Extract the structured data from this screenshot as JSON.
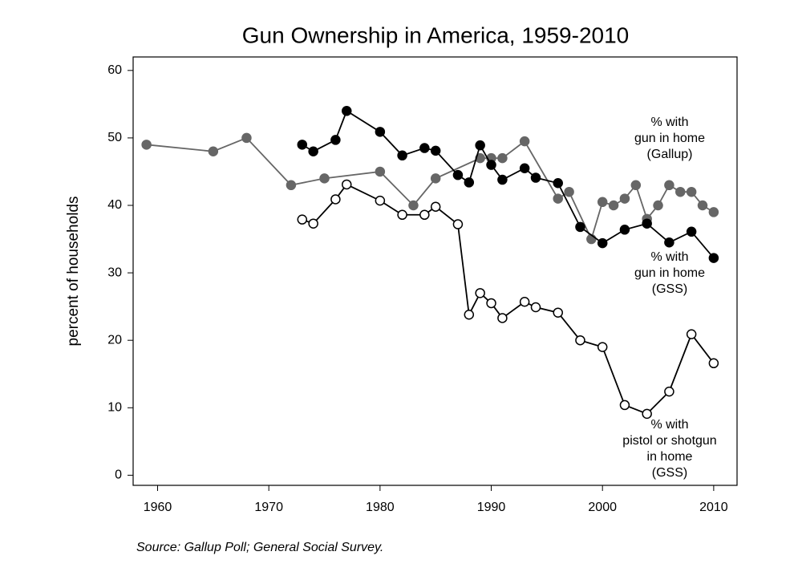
{
  "chart_data": {
    "type": "line",
    "title": "Gun Ownership in America, 1959-2010",
    "y_label": "percent of households",
    "source": "Source: Gallup Poll; General Social Survey.",
    "xlim": [
      1957.8,
      2012.1
    ],
    "xticks": [
      1960,
      1970,
      1980,
      1990,
      2000,
      2010
    ],
    "ylim": [
      -1.5,
      62
    ],
    "yticks": [
      0,
      10,
      20,
      30,
      40,
      50,
      60
    ],
    "grid": false,
    "series": [
      {
        "name": "% with\ngun in home\n(Gallup)",
        "color": "#666666",
        "marker_fill": "#666666",
        "x": [
          1959,
          1965,
          1968,
          1972,
          1975,
          1980,
          1983,
          1985,
          1989,
          1990,
          1991,
          1993,
          1996,
          1997,
          1999,
          2000,
          2001,
          2002,
          2003,
          2004,
          2005,
          2006,
          2007,
          2008,
          2009,
          2010
        ],
        "values": [
          49,
          48,
          50,
          43,
          44,
          45,
          40,
          44,
          47,
          47,
          47,
          49.5,
          41,
          42,
          35,
          40.5,
          40,
          41,
          43,
          38,
          40,
          43,
          42,
          42,
          40,
          39
        ]
      },
      {
        "name": "% with\ngun in home\n(GSS)",
        "color": "#000000",
        "marker_fill": "#000000",
        "x": [
          1973,
          1974,
          1976,
          1977,
          1980,
          1982,
          1984,
          1985,
          1987,
          1988,
          1989,
          1990,
          1991,
          1993,
          1994,
          1996,
          1998,
          2000,
          2002,
          2004,
          2006,
          2008,
          2010
        ],
        "values": [
          49,
          48,
          49.7,
          54,
          50.9,
          47.4,
          48.5,
          48.1,
          44.5,
          43.4,
          48.9,
          46,
          43.8,
          45.5,
          44.1,
          43.3,
          36.8,
          34.4,
          36.4,
          37.3,
          34.5,
          36.1,
          32.2
        ]
      },
      {
        "name": "% with\npistol or shotgun\nin home\n(GSS)",
        "color": "#000000",
        "marker_fill": "#ffffff",
        "x": [
          1973,
          1974,
          1976,
          1977,
          1980,
          1982,
          1984,
          1985,
          1987,
          1988,
          1989,
          1990,
          1991,
          1993,
          1994,
          1996,
          1998,
          2000,
          2002,
          2004,
          2006,
          2008,
          2010
        ],
        "values": [
          37.9,
          37.3,
          40.9,
          43.1,
          40.7,
          38.6,
          38.6,
          39.8,
          37.2,
          23.8,
          27,
          25.5,
          23.3,
          25.7,
          24.9,
          24.1,
          20,
          19,
          10.4,
          9.1,
          12.4,
          20.9,
          16.6
        ]
      }
    ]
  }
}
